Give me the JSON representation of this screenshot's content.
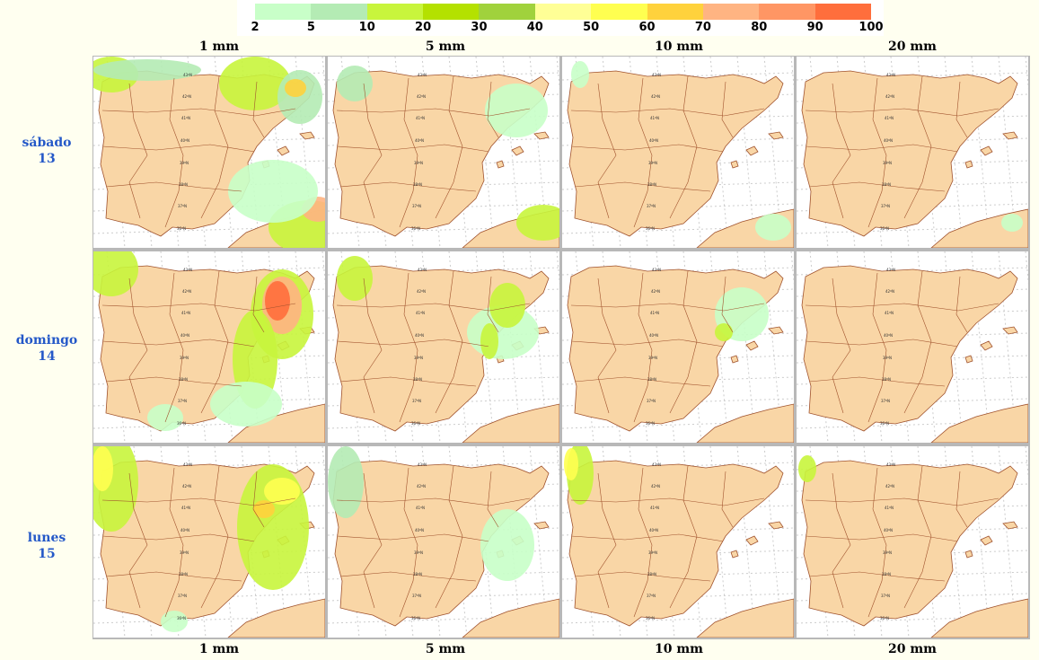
{
  "legend": {
    "ticks": [
      "2",
      "5",
      "10",
      "20",
      "30",
      "40",
      "50",
      "60",
      "70",
      "80",
      "90",
      "100"
    ],
    "colors": [
      "#c8ffc8",
      "#b4ebb4",
      "#c8f53c",
      "#b4e100",
      "#a0d23c",
      "#ffff96",
      "#ffff50",
      "#ffd23c",
      "#ffb482",
      "#ff9664",
      "#ff6e3c"
    ]
  },
  "columns": {
    "top": [
      "1 mm",
      "5 mm",
      "10 mm",
      "20 mm"
    ],
    "bottom": [
      "1 mm",
      "5 mm",
      "10 mm",
      "20 mm"
    ]
  },
  "rows": [
    {
      "day": "sábado",
      "date": "13"
    },
    {
      "day": "domingo",
      "date": "14"
    },
    {
      "day": "lunes",
      "date": "15"
    }
  ],
  "map": {
    "lat_labels": [
      "43ºN",
      "42ºN",
      "41ºN",
      "40ºN",
      "39ºN",
      "38ºN",
      "37ºN",
      "36ºN"
    ],
    "land_color": "#f9d6a6",
    "border_color": "#a0522d"
  }
}
